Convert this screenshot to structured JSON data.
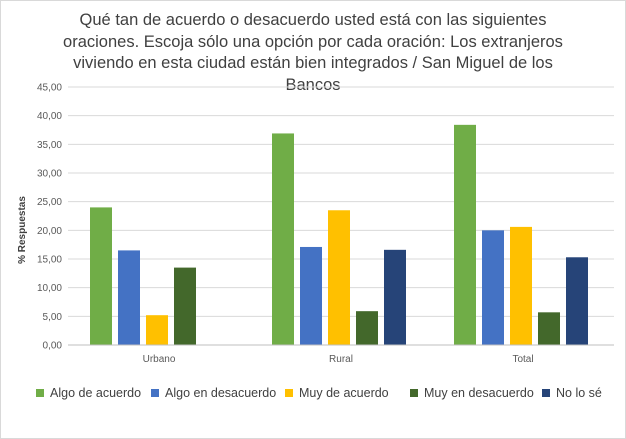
{
  "chart_data": {
    "type": "bar",
    "title": "Qué tan de acuerdo o desacuerdo usted está con las siguientes oraciones.  Escoja sólo una opción por cada oración: Los extranjeros viviendo en esta ciudad están bien integrados / San Miguel de los Bancos",
    "title_lines": [
      "Qué tan de acuerdo o desacuerdo usted está con las siguientes",
      "oraciones.  Escoja sólo una opción por cada oración: Los extranjeros",
      "viviendo en esta ciudad están bien integrados / San Miguel de los",
      "Bancos"
    ],
    "ylabel": "% Respuestas",
    "xlabel": "",
    "ylim": [
      0,
      45
    ],
    "yticks": [
      "0,00",
      "5,00",
      "10,00",
      "15,00",
      "20,00",
      "25,00",
      "30,00",
      "35,00",
      "40,00",
      "45,00"
    ],
    "categories": [
      "Urbano",
      "Rural",
      "Total"
    ],
    "series": [
      {
        "name": "Algo de acuerdo",
        "color": "#70ad47",
        "values": [
          24.0,
          36.9,
          38.4
        ]
      },
      {
        "name": "Algo en desacuerdo",
        "color": "#4472c4",
        "values": [
          16.5,
          17.1,
          20.0
        ]
      },
      {
        "name": "Muy de acuerdo",
        "color": "#ffc000",
        "values": [
          5.2,
          23.5,
          20.6
        ]
      },
      {
        "name": "Muy en desacuerdo",
        "color": "#43682b",
        "values": [
          13.5,
          5.9,
          5.7
        ]
      },
      {
        "name": "No lo sé",
        "color": "#264478",
        "values": [
          0,
          16.6,
          15.3
        ]
      }
    ],
    "grid": true,
    "legend_position": "bottom"
  }
}
